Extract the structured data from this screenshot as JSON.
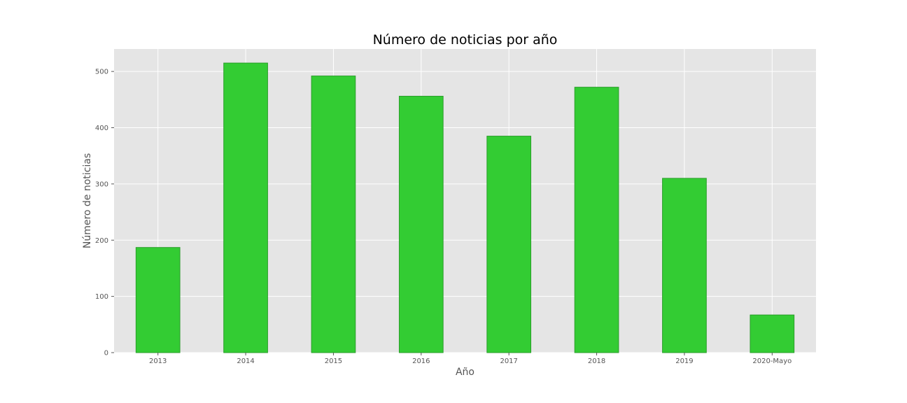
{
  "chart_data": {
    "type": "bar",
    "title": "Número de noticias por año",
    "xlabel": "Año",
    "ylabel": "Número de noticias",
    "categories": [
      "2013",
      "2014",
      "2015",
      "2016",
      "2017",
      "2018",
      "2019",
      "2020-Mayo"
    ],
    "values": [
      187,
      515,
      492,
      456,
      385,
      472,
      310,
      67
    ],
    "ylim": [
      0,
      540
    ],
    "yticks": [
      0,
      100,
      200,
      300,
      400,
      500
    ],
    "grid": true,
    "legend": "none",
    "colors": {
      "bar_fill": "#33cc33",
      "bar_edge": "#2a9e2a",
      "plot_background": "#e5e5e5",
      "grid": "#ffffff",
      "tick_text": "#555555",
      "title_text": "#000000"
    }
  }
}
